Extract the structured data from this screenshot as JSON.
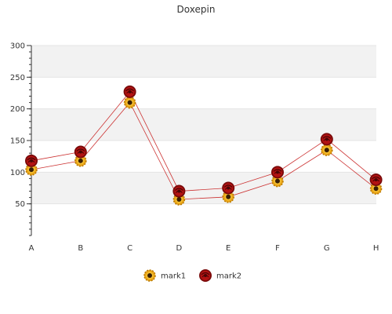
{
  "chart_data": {
    "type": "line",
    "title": "Doxepin",
    "xlabel": "",
    "ylabel": "",
    "categories": [
      "A",
      "B",
      "C",
      "D",
      "E",
      "F",
      "G",
      "H"
    ],
    "ylim": [
      0,
      300
    ],
    "yticks": [
      50,
      100,
      150,
      200,
      250,
      300
    ],
    "grid": "alternating horizontal bands",
    "legend_position": "bottom-center",
    "series": [
      {
        "name": "mark1",
        "marker": "sunflower-icon",
        "color": "#e8a317",
        "values": [
          104,
          118,
          210,
          57,
          61,
          86,
          135,
          74
        ]
      },
      {
        "name": "mark2",
        "marker": "red-rose-icon",
        "color": "#b31212",
        "values": [
          118,
          132,
          227,
          70,
          75,
          100,
          152,
          88
        ]
      }
    ],
    "line_color": "#cc3333"
  }
}
